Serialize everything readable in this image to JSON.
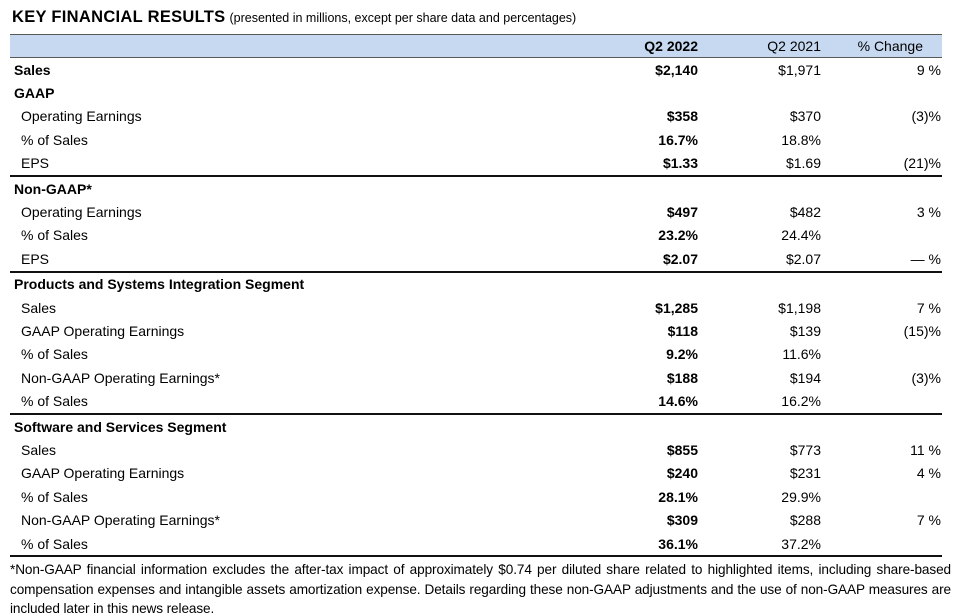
{
  "title": "KEY FINANCIAL RESULTS",
  "subtitle": "(presented in millions, except per share data and percentages)",
  "header_bg_color": "#c6d9f1",
  "table": {
    "columns": [
      "",
      "Q2 2022",
      "Q2 2021",
      "% Change"
    ],
    "rows": [
      {
        "label": "Sales",
        "style": "bold",
        "q2_2022": "$2,140",
        "q2_2021": "$1,971",
        "change": "9 %",
        "divider_after": false
      },
      {
        "label": "GAAP",
        "style": "section",
        "q2_2022": "",
        "q2_2021": "",
        "change": "",
        "divider_after": false
      },
      {
        "label": "Operating Earnings",
        "style": "item",
        "q2_2022": "$358",
        "q2_2021": "$370",
        "change": "(3)%",
        "divider_after": false
      },
      {
        "label": "% of Sales",
        "style": "item",
        "q2_2022": "16.7%",
        "q2_2021": "18.8%",
        "change": "",
        "divider_after": false
      },
      {
        "label": "EPS",
        "style": "item",
        "q2_2022": "$1.33",
        "q2_2021": "$1.69",
        "change": "(21)%",
        "divider_after": true
      },
      {
        "label": "Non-GAAP*",
        "style": "section",
        "q2_2022": "",
        "q2_2021": "",
        "change": "",
        "divider_after": false
      },
      {
        "label": "Operating Earnings",
        "style": "item",
        "q2_2022": "$497",
        "q2_2021": "$482",
        "change": "3 %",
        "divider_after": false
      },
      {
        "label": "% of Sales",
        "style": "item",
        "q2_2022": "23.2%",
        "q2_2021": "24.4%",
        "change": "",
        "divider_after": false
      },
      {
        "label": "EPS",
        "style": "item",
        "q2_2022": "$2.07",
        "q2_2021": "$2.07",
        "change": "— %",
        "divider_after": true
      },
      {
        "label": "Products and Systems Integration Segment",
        "style": "section",
        "q2_2022": "",
        "q2_2021": "",
        "change": "",
        "divider_after": false
      },
      {
        "label": "Sales",
        "style": "item",
        "q2_2022": "$1,285",
        "q2_2021": "$1,198",
        "change": "7 %",
        "divider_after": false
      },
      {
        "label": "GAAP Operating Earnings",
        "style": "item",
        "q2_2022": "$118",
        "q2_2021": "$139",
        "change": "(15)%",
        "divider_after": false
      },
      {
        "label": "% of Sales",
        "style": "item",
        "q2_2022": "9.2%",
        "q2_2021": "11.6%",
        "change": "",
        "divider_after": false
      },
      {
        "label": "Non-GAAP Operating Earnings*",
        "style": "item",
        "q2_2022": "$188",
        "q2_2021": "$194",
        "change": "(3)%",
        "divider_after": false
      },
      {
        "label": "% of Sales",
        "style": "item",
        "q2_2022": "14.6%",
        "q2_2021": "16.2%",
        "change": "",
        "divider_after": true
      },
      {
        "label": "Software and Services Segment",
        "style": "section",
        "q2_2022": "",
        "q2_2021": "",
        "change": "",
        "divider_after": false
      },
      {
        "label": "Sales",
        "style": "item",
        "q2_2022": "$855",
        "q2_2021": "$773",
        "change": "11 %",
        "divider_after": false
      },
      {
        "label": "GAAP Operating Earnings",
        "style": "item",
        "q2_2022": "$240",
        "q2_2021": "$231",
        "change": "4 %",
        "divider_after": false
      },
      {
        "label": "% of Sales",
        "style": "item",
        "q2_2022": "28.1%",
        "q2_2021": "29.9%",
        "change": "",
        "divider_after": false
      },
      {
        "label": "Non-GAAP Operating Earnings*",
        "style": "item",
        "q2_2022": "$309",
        "q2_2021": "$288",
        "change": "7 %",
        "divider_after": false
      },
      {
        "label": "% of Sales",
        "style": "item",
        "q2_2022": "36.1%",
        "q2_2021": "37.2%",
        "change": "",
        "divider_after": true
      }
    ]
  },
  "footnote": "*Non-GAAP financial information excludes the after-tax impact of approximately $0.74 per diluted share related to highlighted items, including share-based compensation expenses and intangible assets amortization expense. Details regarding these non-GAAP adjustments and the use of non-GAAP measures are included later in this news release."
}
